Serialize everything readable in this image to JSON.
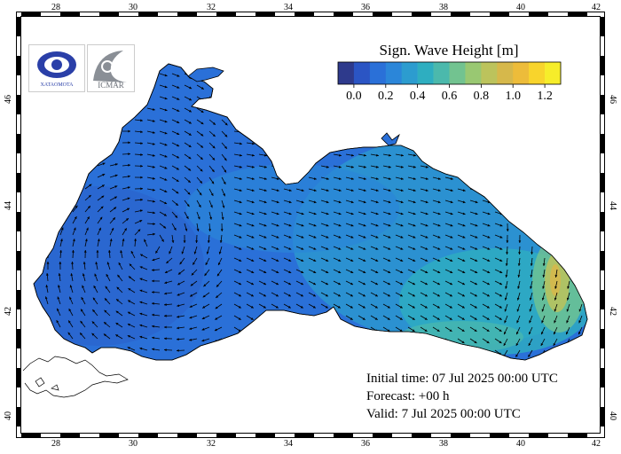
{
  "map": {
    "colorbar": {
      "title": "Sign. Wave Height [m]",
      "colors": [
        "#2e3a8c",
        "#2b55c4",
        "#2a70d8",
        "#2b86d9",
        "#2c9ccf",
        "#2eaec0",
        "#4bb9ac",
        "#72c390",
        "#99c872",
        "#bcc35c",
        "#d6b84b",
        "#edbc3a",
        "#f8d42c",
        "#f6ed2a"
      ],
      "tick_labels": [
        "0.0",
        "0.2",
        "0.4",
        "0.6",
        "0.8",
        "1.0",
        "1.2"
      ]
    },
    "lon_labels": [
      "28",
      "30",
      "32",
      "34",
      "36",
      "38",
      "40",
      "42"
    ],
    "lat_labels": [
      "40",
      "42",
      "44",
      "46"
    ],
    "info": {
      "initial": "Initial time: 07 Jul 2025 00:00 UTC",
      "forecast": "Forecast: +00 h",
      "valid": "Valid:  7 Jul 2025 00:00 UTC"
    },
    "logos": {
      "left_text": "XATAOMOTA",
      "right_text": "ICMAR"
    }
  }
}
